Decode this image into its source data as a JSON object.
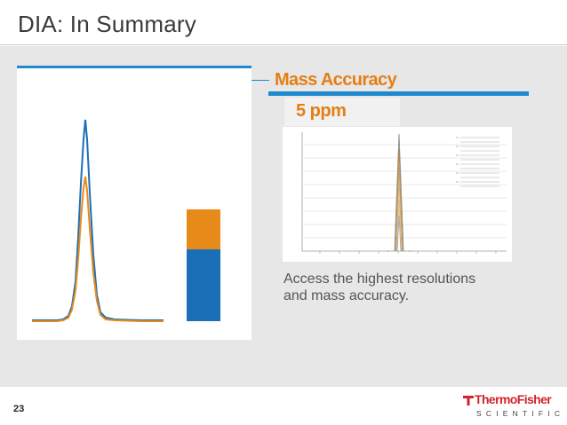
{
  "slide": {
    "title": "DIA: In Summary",
    "page_number": "23"
  },
  "left_chart": {
    "colors": {
      "blue": "#1b6fb7",
      "orange": "#e88a1a"
    },
    "bar": {
      "orange_fraction": 0.36,
      "blue_fraction": 0.64
    }
  },
  "mass_accuracy": {
    "heading": "Mass Accuracy",
    "value": "5 ppm",
    "caption_lines": [
      "Access the highest resolutions",
      "and mass accuracy."
    ]
  },
  "logo": {
    "brand_top": "ThermoFisher",
    "brand_bottom": "SCIENTIFIC",
    "color": "#d2232a"
  }
}
